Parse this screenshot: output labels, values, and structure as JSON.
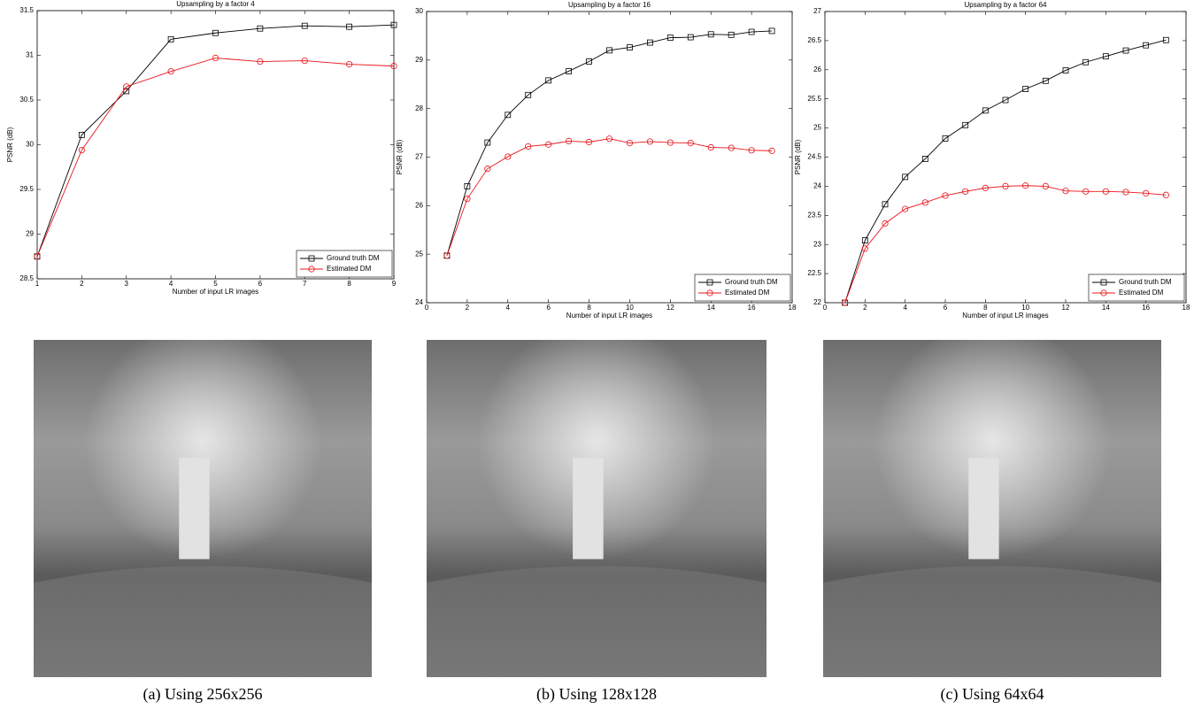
{
  "chart_data": [
    {
      "type": "line",
      "title": "Upsampling by a factor 4",
      "x_label": "Number of input LR images",
      "y_label": "PSNR (dB)",
      "x": [
        1,
        2,
        3,
        4,
        5,
        6,
        7,
        8,
        9
      ],
      "xlim": [
        1,
        9
      ],
      "xticks": [
        1,
        2,
        3,
        4,
        5,
        6,
        7,
        8,
        9
      ],
      "ylim": [
        28.5,
        31.5
      ],
      "yticks": [
        28.5,
        29,
        29.5,
        30,
        30.5,
        31,
        31.5
      ],
      "grid": false,
      "legend": "lower right",
      "series": [
        {
          "name": "Ground truth DM",
          "color": "#000000",
          "marker": "square",
          "values": [
            28.75,
            30.11,
            30.6,
            31.18,
            31.25,
            31.3,
            31.33,
            31.32,
            31.34
          ]
        },
        {
          "name": "Estimated DM",
          "color": "#e8141a",
          "marker": "circle",
          "values": [
            28.75,
            29.94,
            30.65,
            30.82,
            30.97,
            30.93,
            30.94,
            30.9,
            30.88
          ]
        }
      ]
    },
    {
      "type": "line",
      "title": "Upsampling by a factor 16",
      "x_label": "Number of input LR images",
      "y_label": "PSNR (dB)",
      "x": [
        1,
        2,
        3,
        4,
        5,
        6,
        7,
        8,
        9,
        10,
        11,
        12,
        13,
        14,
        15,
        16,
        17
      ],
      "xlim": [
        0,
        18
      ],
      "xticks": [
        0,
        2,
        4,
        6,
        8,
        10,
        12,
        14,
        16,
        18
      ],
      "ylim": [
        24,
        30
      ],
      "yticks": [
        24,
        25,
        26,
        27,
        28,
        29,
        30
      ],
      "grid": false,
      "legend": "lower right",
      "series": [
        {
          "name": "Ground truth DM",
          "color": "#000000",
          "marker": "square",
          "values": [
            24.97,
            26.4,
            27.3,
            27.87,
            28.28,
            28.58,
            28.77,
            28.97,
            29.2,
            29.26,
            29.36,
            29.46,
            29.47,
            29.53,
            29.52,
            29.58,
            29.6
          ]
        },
        {
          "name": "Estimated DM",
          "color": "#e8141a",
          "marker": "circle",
          "values": [
            24.97,
            26.14,
            26.76,
            27.01,
            27.22,
            27.26,
            27.33,
            27.31,
            27.38,
            27.29,
            27.32,
            27.3,
            27.29,
            27.2,
            27.19,
            27.14,
            27.13
          ]
        }
      ]
    },
    {
      "type": "line",
      "title": "Upsampling by a factor 64",
      "x_label": "Number of input LR images",
      "y_label": "PSNR (dB)",
      "x": [
        1,
        2,
        3,
        4,
        5,
        6,
        7,
        8,
        9,
        10,
        11,
        12,
        13,
        14,
        15,
        16,
        17
      ],
      "xlim": [
        0,
        18
      ],
      "xticks": [
        0,
        2,
        4,
        6,
        8,
        10,
        12,
        14,
        16,
        18
      ],
      "ylim": [
        22,
        27
      ],
      "yticks": [
        22,
        22.5,
        23,
        23.5,
        24,
        24.5,
        25,
        25.5,
        26,
        26.5,
        27
      ],
      "grid": false,
      "legend": "lower right",
      "series": [
        {
          "name": "Ground truth DM",
          "color": "#000000",
          "marker": "square",
          "values": [
            22.0,
            23.07,
            23.69,
            24.16,
            24.47,
            24.82,
            25.05,
            25.3,
            25.48,
            25.67,
            25.81,
            25.99,
            26.13,
            26.23,
            26.33,
            26.42,
            26.51
          ]
        },
        {
          "name": "Estimated DM",
          "color": "#e8141a",
          "marker": "circle",
          "values": [
            22.0,
            22.93,
            23.36,
            23.61,
            23.72,
            23.84,
            23.91,
            23.97,
            24.0,
            24.01,
            24.0,
            23.92,
            23.91,
            23.91,
            23.9,
            23.88,
            23.85
          ]
        }
      ]
    }
  ],
  "captions": [
    "(a) Using 256x256",
    "(b) Using 128x128",
    "(c) Using 64x64"
  ]
}
